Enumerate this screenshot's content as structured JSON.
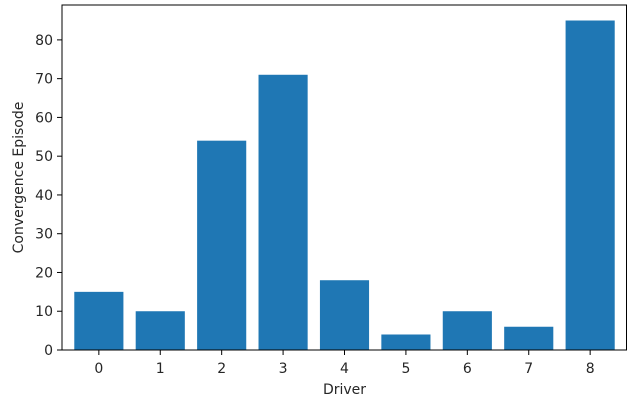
{
  "chart_data": {
    "type": "bar",
    "categories": [
      "0",
      "1",
      "2",
      "3",
      "4",
      "5",
      "6",
      "7",
      "8"
    ],
    "values": [
      15,
      10,
      54,
      71,
      18,
      4,
      10,
      6,
      85
    ],
    "title": "",
    "xlabel": "Driver",
    "ylabel": "Convergence Episode",
    "ylim": [
      0,
      89
    ],
    "yticks": [
      0,
      10,
      20,
      30,
      40,
      50,
      60,
      70,
      80
    ],
    "grid": false,
    "bar_color": "#1f77b4"
  }
}
